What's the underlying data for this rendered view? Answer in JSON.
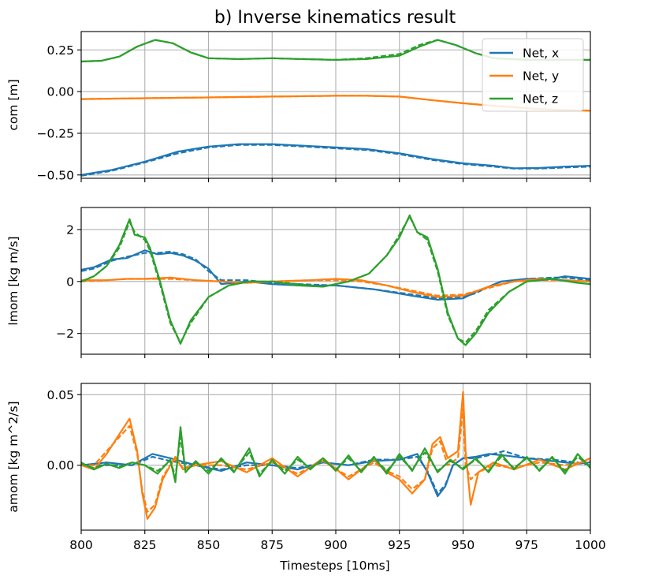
{
  "chart_data": {
    "type": "line",
    "title": "b) Inverse kinematics result",
    "xlabel": "Timesteps [10ms]",
    "xlim": [
      800,
      1000
    ],
    "xticks": [
      800,
      825,
      850,
      875,
      900,
      925,
      950,
      975,
      1000
    ],
    "xtick_labels": [
      "800",
      "825",
      "850",
      "875",
      "900",
      "925",
      "950",
      "975",
      "1000"
    ],
    "legend": {
      "placement": "top-right",
      "entries": [
        "Net, x",
        "Net, y",
        "Net, z"
      ]
    },
    "colors": {
      "x": "#1f77b4",
      "y": "#ff7f0e",
      "z": "#2ca02c",
      "grid": "#b0b0b0"
    },
    "style_note": "solid = result, dashed = reference",
    "subplots": [
      {
        "ylabel": "com [m]",
        "ylim": [
          -0.52,
          0.36
        ],
        "yticks": [
          0.25,
          0.0,
          -0.25,
          -0.5
        ],
        "ytick_labels": [
          "0.25",
          "0.00",
          "−0.25",
          "−0.50"
        ],
        "series": [
          {
            "name": "Net, x",
            "color": "#1f77b4",
            "x": [
              800,
              812,
              825,
              838,
              850,
              862,
              875,
              888,
              900,
              912,
              925,
              938,
              950,
              962,
              970,
              980,
              990,
              1000
            ],
            "solid": [
              -0.5,
              -0.47,
              -0.42,
              -0.36,
              -0.33,
              -0.315,
              -0.315,
              -0.325,
              -0.335,
              -0.345,
              -0.37,
              -0.405,
              -0.43,
              -0.445,
              -0.46,
              -0.458,
              -0.45,
              -0.445
            ],
            "dashed": [
              -0.505,
              -0.475,
              -0.425,
              -0.37,
              -0.335,
              -0.32,
              -0.32,
              -0.33,
              -0.34,
              -0.35,
              -0.375,
              -0.41,
              -0.435,
              -0.45,
              -0.462,
              -0.462,
              -0.455,
              -0.45
            ]
          },
          {
            "name": "Net, y",
            "color": "#ff7f0e",
            "x": [
              800,
              825,
              850,
              875,
              900,
              912,
              925,
              937,
              950,
              962,
              975,
              987,
              1000
            ],
            "solid": [
              -0.045,
              -0.04,
              -0.035,
              -0.03,
              -0.025,
              -0.025,
              -0.03,
              -0.05,
              -0.07,
              -0.085,
              -0.1,
              -0.11,
              -0.115
            ],
            "dashed": [
              -0.045,
              -0.04,
              -0.035,
              -0.03,
              -0.025,
              -0.025,
              -0.03,
              -0.05,
              -0.07,
              -0.085,
              -0.1,
              -0.11,
              -0.115
            ]
          },
          {
            "name": "Net, z",
            "color": "#2ca02c",
            "x": [
              800,
              808,
              815,
              822,
              829,
              836,
              843,
              850,
              862,
              875,
              887,
              900,
              912,
              925,
              933,
              940,
              947,
              955,
              962,
              975,
              987,
              1000
            ],
            "solid": [
              0.18,
              0.185,
              0.21,
              0.27,
              0.31,
              0.29,
              0.235,
              0.2,
              0.195,
              0.2,
              0.195,
              0.19,
              0.195,
              0.215,
              0.27,
              0.31,
              0.28,
              0.23,
              0.2,
              0.19,
              0.19,
              0.19
            ],
            "dashed": [
              0.18,
              0.185,
              0.21,
              0.27,
              0.31,
              0.29,
              0.235,
              0.2,
              0.195,
              0.2,
              0.195,
              0.19,
              0.2,
              0.225,
              0.28,
              0.31,
              0.28,
              0.23,
              0.2,
              0.19,
              0.19,
              0.19
            ]
          }
        ]
      },
      {
        "ylabel": "lmom [kg m/s]",
        "ylim": [
          -2.8,
          2.85
        ],
        "yticks": [
          2,
          0,
          -2
        ],
        "ytick_labels": [
          "2",
          "0",
          "−2"
        ],
        "series": [
          {
            "name": "Net, x",
            "color": "#1f77b4",
            "x": [
              800,
              805,
              812,
              818,
              825,
              830,
              835,
              840,
              845,
              850,
              855,
              865,
              875,
              885,
              900,
              915,
              930,
              940,
              950,
              955,
              960,
              965,
              975,
              985,
              990,
              995,
              1000
            ],
            "solid": [
              0.45,
              0.55,
              0.85,
              0.9,
              1.2,
              1.05,
              1.1,
              1.0,
              0.8,
              0.5,
              -0.1,
              0.0,
              -0.1,
              -0.15,
              -0.15,
              -0.3,
              -0.55,
              -0.7,
              -0.65,
              -0.4,
              -0.2,
              0.0,
              0.1,
              0.1,
              0.2,
              0.15,
              0.1
            ],
            "dashed": [
              0.4,
              0.5,
              0.8,
              0.95,
              1.1,
              1.1,
              1.15,
              1.05,
              0.85,
              0.4,
              0.05,
              0.05,
              -0.05,
              -0.1,
              -0.15,
              -0.3,
              -0.5,
              -0.65,
              -0.6,
              -0.45,
              -0.2,
              0.0,
              0.1,
              0.15,
              0.15,
              0.1,
              0.05
            ]
          },
          {
            "name": "Net, y",
            "color": "#ff7f0e",
            "x": [
              800,
              810,
              818,
              825,
              835,
              845,
              855,
              865,
              875,
              890,
              900,
              910,
              920,
              930,
              940,
              950,
              960,
              970,
              980,
              990,
              1000
            ],
            "solid": [
              0.05,
              0.05,
              0.1,
              0.1,
              0.15,
              0.05,
              0.0,
              -0.05,
              0.0,
              0.05,
              0.1,
              0.05,
              -0.15,
              -0.4,
              -0.6,
              -0.55,
              -0.2,
              0.0,
              0.1,
              0.05,
              0.0
            ],
            "dashed": [
              0.0,
              0.05,
              0.1,
              0.1,
              0.1,
              0.05,
              0.0,
              -0.05,
              0.0,
              0.05,
              0.05,
              0.0,
              -0.15,
              -0.35,
              -0.55,
              -0.5,
              -0.25,
              0.0,
              0.05,
              0.05,
              0.0
            ]
          },
          {
            "name": "Net, z",
            "color": "#2ca02c",
            "x": [
              800,
              805,
              810,
              815,
              819,
              821,
              825,
              827,
              831,
              835,
              839,
              843,
              850,
              858,
              866,
              875,
              885,
              895,
              905,
              913,
              920,
              925,
              929,
              932,
              936,
              940,
              944,
              948,
              951,
              955,
              960,
              968,
              975,
              985,
              995,
              1000
            ],
            "solid": [
              0.0,
              0.2,
              0.6,
              1.4,
              2.4,
              1.8,
              1.7,
              1.3,
              0.0,
              -1.5,
              -2.4,
              -1.5,
              -0.6,
              -0.15,
              0.0,
              0.0,
              -0.15,
              -0.2,
              0.0,
              0.3,
              1.0,
              1.7,
              2.55,
              1.9,
              1.7,
              0.5,
              -1.2,
              -2.2,
              -2.45,
              -2.0,
              -1.2,
              -0.4,
              0.0,
              0.1,
              -0.05,
              -0.1
            ],
            "dashed": [
              0.0,
              0.2,
              0.6,
              1.3,
              2.3,
              1.9,
              1.6,
              1.2,
              -0.1,
              -1.6,
              -2.35,
              -1.6,
              -0.6,
              -0.15,
              0.0,
              0.0,
              -0.1,
              -0.2,
              0.0,
              0.3,
              1.0,
              1.8,
              2.5,
              1.9,
              1.6,
              0.4,
              -1.3,
              -2.2,
              -2.35,
              -1.9,
              -1.1,
              -0.4,
              0.0,
              0.1,
              -0.05,
              -0.1
            ]
          }
        ]
      },
      {
        "ylabel": "amom [kg m^2/s]",
        "ylim": [
          -0.046,
          0.058
        ],
        "yticks": [
          0.05,
          0.0
        ],
        "ytick_labels": [
          "0.05",
          "0.00"
        ],
        "series": [
          {
            "name": "Net, x",
            "color": "#1f77b4",
            "x": [
              800,
              810,
              820,
              828,
              835,
              845,
              855,
              865,
              875,
              885,
              895,
              905,
              915,
              925,
              932,
              936,
              940,
              943,
              946,
              950,
              955,
              960,
              966,
              975,
              985,
              995,
              1000
            ],
            "solid": [
              0.0,
              0.002,
              0.0,
              0.008,
              0.005,
              0.0,
              -0.004,
              0.002,
              0.0,
              -0.003,
              0.002,
              0.0,
              0.003,
              0.004,
              0.008,
              -0.005,
              -0.022,
              -0.015,
              0.0,
              0.005,
              0.006,
              0.008,
              0.007,
              0.005,
              0.003,
              0.001,
              0.002
            ],
            "dashed": [
              0.0,
              0.0,
              0.0,
              0.006,
              0.003,
              0.0,
              -0.003,
              0.0,
              0.0,
              -0.002,
              0.002,
              0.0,
              0.004,
              0.004,
              0.006,
              -0.004,
              -0.02,
              -0.014,
              0.0,
              0.005,
              0.005,
              0.007,
              0.01,
              0.005,
              0.004,
              0.002,
              0.0
            ]
          },
          {
            "name": "Net, y",
            "color": "#ff7f0e",
            "x": [
              800,
              805,
              810,
              815,
              819,
              822,
              824,
              826,
              829,
              832,
              835,
              837,
              840,
              845,
              855,
              865,
              875,
              885,
              895,
              905,
              915,
              920,
              925,
              930,
              935,
              938,
              941,
              944,
              948,
              950,
              951,
              953,
              956,
              962,
              970,
              980,
              990,
              1000
            ],
            "solid": [
              0.0,
              -0.003,
              0.008,
              0.022,
              0.033,
              0.01,
              -0.02,
              -0.038,
              -0.03,
              -0.01,
              0.0,
              0.006,
              -0.003,
              0.0,
              0.003,
              -0.005,
              0.005,
              -0.008,
              0.005,
              -0.01,
              0.004,
              -0.005,
              -0.01,
              -0.02,
              -0.01,
              0.015,
              0.02,
              0.005,
              0.01,
              0.052,
              0.01,
              -0.028,
              -0.005,
              0.002,
              -0.003,
              0.004,
              -0.003,
              0.005
            ],
            "dashed": [
              0.0,
              0.0,
              0.01,
              0.02,
              0.028,
              0.008,
              -0.018,
              -0.033,
              -0.028,
              -0.008,
              0.0,
              0.004,
              -0.002,
              0.0,
              0.0,
              -0.003,
              0.002,
              -0.006,
              0.003,
              -0.008,
              0.002,
              -0.004,
              -0.008,
              -0.017,
              -0.01,
              0.012,
              0.017,
              0.0,
              0.005,
              0.04,
              0.0,
              -0.01,
              -0.005,
              0.0,
              -0.002,
              0.002,
              0.0,
              0.003
            ]
          },
          {
            "name": "Net, z",
            "color": "#2ca02c",
            "x": [
              800,
              805,
              810,
              815,
              820,
              825,
              830,
              835,
              837,
              839,
              841,
              845,
              850,
              855,
              860,
              866,
              870,
              875,
              880,
              885,
              890,
              895,
              900,
              905,
              910,
              915,
              920,
              925,
              930,
              935,
              940,
              945,
              950,
              955,
              960,
              965,
              970,
              975,
              980,
              985,
              990,
              995,
              1000
            ],
            "solid": [
              0.002,
              -0.003,
              0.001,
              -0.002,
              0.002,
              0.0,
              -0.006,
              0.004,
              -0.012,
              0.027,
              -0.005,
              0.003,
              -0.006,
              0.005,
              -0.005,
              0.012,
              -0.008,
              0.004,
              -0.006,
              0.006,
              -0.003,
              0.005,
              -0.004,
              0.007,
              -0.005,
              0.006,
              -0.006,
              0.008,
              -0.004,
              0.012,
              -0.005,
              0.004,
              -0.003,
              0.005,
              -0.005,
              0.008,
              -0.003,
              0.006,
              -0.004,
              0.006,
              -0.006,
              0.008,
              -0.002
            ],
            "dashed": [
              0.001,
              -0.002,
              0.001,
              -0.001,
              0.002,
              0.0,
              -0.004,
              0.003,
              -0.008,
              0.02,
              -0.004,
              0.002,
              -0.004,
              0.004,
              -0.004,
              0.009,
              -0.006,
              0.003,
              -0.004,
              0.004,
              -0.002,
              0.004,
              -0.003,
              0.005,
              -0.004,
              0.005,
              -0.004,
              0.006,
              -0.003,
              0.009,
              -0.004,
              0.003,
              -0.002,
              0.004,
              -0.004,
              0.006,
              -0.002,
              0.005,
              -0.003,
              0.005,
              -0.004,
              0.006,
              -0.001
            ]
          }
        ]
      }
    ]
  }
}
